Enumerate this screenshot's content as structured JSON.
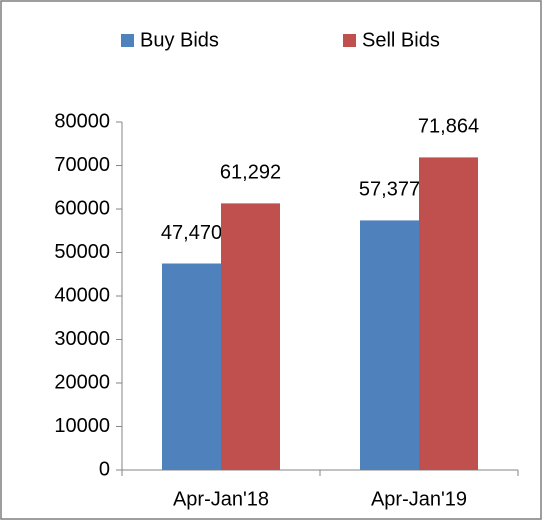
{
  "chart_data": {
    "type": "bar",
    "categories": [
      "Apr-Jan'18",
      "Apr-Jan'19"
    ],
    "series": [
      {
        "name": "Buy Bids",
        "color": "#4f81bd",
        "values": [
          47470,
          57377
        ],
        "value_labels": [
          "47,470",
          "57,377"
        ]
      },
      {
        "name": "Sell Bids",
        "color": "#c0504d",
        "values": [
          61292,
          71864
        ],
        "value_labels": [
          "61,292",
          "71,864"
        ]
      }
    ],
    "ylim": [
      0,
      80000
    ],
    "yticks": [
      0,
      10000,
      20000,
      30000,
      40000,
      50000,
      60000,
      70000,
      80000
    ],
    "grid": false,
    "legend": "top"
  }
}
